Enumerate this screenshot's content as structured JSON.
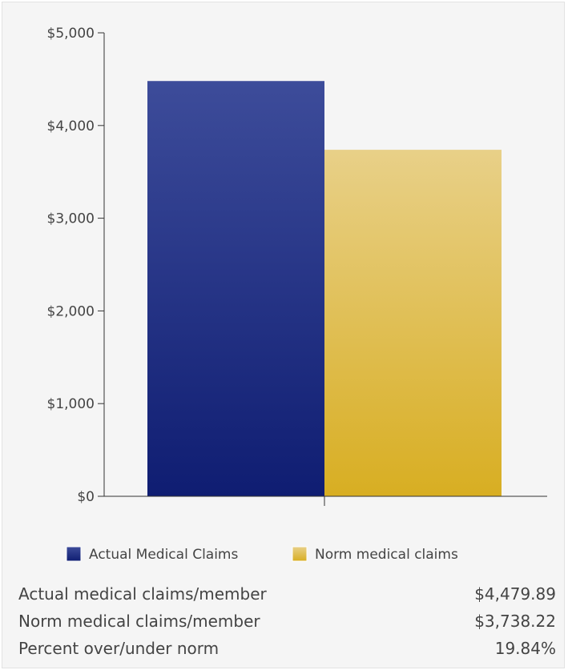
{
  "chart_data": {
    "type": "bar",
    "categories": [
      ""
    ],
    "series": [
      {
        "name": "Actual Medical Claims",
        "values": [
          4479.89
        ],
        "color": "#1a237e"
      },
      {
        "name": "Norm medical claims",
        "values": [
          3738.22
        ],
        "color": "#e0b93a"
      }
    ],
    "yticks": [
      "$0",
      "$1,000",
      "$2,000",
      "$3,000",
      "$4,000",
      "$5,000"
    ],
    "ytick_values": [
      0,
      1000,
      2000,
      3000,
      4000,
      5000
    ],
    "ylim": [
      0,
      5000
    ],
    "legend_position": "bottom",
    "grid": false
  },
  "stats": [
    {
      "label": "Actual medical claims/member",
      "value": "$4,479.89"
    },
    {
      "label": "Norm medical claims/member",
      "value": "$3,738.22"
    },
    {
      "label": "Percent over/under norm",
      "value": "19.84%"
    }
  ]
}
